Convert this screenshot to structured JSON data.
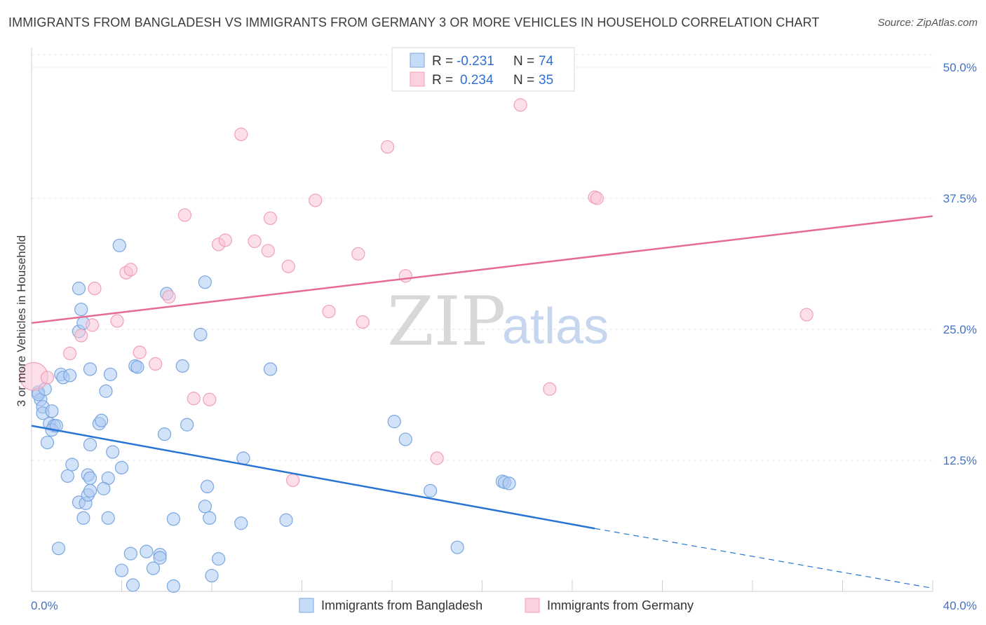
{
  "title": "IMMIGRANTS FROM BANGLADESH VS IMMIGRANTS FROM GERMANY 3 OR MORE VEHICLES IN HOUSEHOLD CORRELATION CHART",
  "source": "Source: ZipAtlas.com",
  "watermark": {
    "zip": "ZIP",
    "atlas": "atlas"
  },
  "colors": {
    "blue": "#5b9bd5",
    "blue_line": "#2874d3",
    "pink": "#f4a7bf",
    "pink_line": "#e56b94",
    "tick": "#4472c4"
  },
  "legend": {
    "rows": [
      {
        "r_label": "R =",
        "r_value": "-0.231",
        "n_label": "N =",
        "n_value": "74"
      },
      {
        "r_label": "R =",
        "r_value": "0.234",
        "n_label": "N =",
        "n_value": "35"
      }
    ]
  },
  "chart_data": {
    "type": "scatter",
    "title": "IMMIGRANTS FROM BANGLADESH VS IMMIGRANTS FROM GERMANY 3 OR MORE VEHICLES IN HOUSEHOLD CORRELATION CHART",
    "xlabel": "",
    "ylabel": "3 or more Vehicles in Household",
    "xlim": [
      0,
      40
    ],
    "ylim": [
      0,
      50
    ],
    "x_tick_labels": [
      "0.0%",
      "40.0%"
    ],
    "y_ticks": [
      12.5,
      25.0,
      37.5,
      50.0
    ],
    "y_tick_labels": [
      "12.5%",
      "25.0%",
      "37.5%",
      "50.0%"
    ],
    "grid": true,
    "legend_position": "top-center",
    "series": [
      {
        "name": "Immigrants from Bangladesh",
        "color": "#5b9bd5",
        "trend": {
          "x": [
            0,
            25
          ],
          "y": [
            15.8,
            6.0
          ],
          "dashed_to": [
            40,
            0.3
          ]
        },
        "points": [
          [
            0.3,
            19.0
          ],
          [
            0.4,
            18.3
          ],
          [
            0.3,
            18.8
          ],
          [
            0.6,
            19.3
          ],
          [
            0.5,
            17.6
          ],
          [
            0.5,
            17.0
          ],
          [
            0.9,
            17.2
          ],
          [
            0.8,
            16.0
          ],
          [
            1.0,
            15.8
          ],
          [
            0.9,
            15.4
          ],
          [
            1.1,
            15.8
          ],
          [
            0.7,
            14.2
          ],
          [
            1.3,
            20.7
          ],
          [
            1.4,
            20.4
          ],
          [
            1.7,
            20.6
          ],
          [
            2.1,
            24.8
          ],
          [
            2.1,
            8.5
          ],
          [
            2.2,
            26.9
          ],
          [
            2.3,
            25.6
          ],
          [
            2.1,
            28.9
          ],
          [
            2.6,
            21.2
          ],
          [
            2.6,
            14.0
          ],
          [
            2.5,
            11.1
          ],
          [
            2.6,
            10.8
          ],
          [
            1.8,
            12.1
          ],
          [
            1.6,
            11.0
          ],
          [
            2.3,
            7.0
          ],
          [
            2.4,
            8.4
          ],
          [
            2.5,
            9.2
          ],
          [
            2.6,
            9.6
          ],
          [
            3.0,
            16.0
          ],
          [
            3.1,
            16.3
          ],
          [
            3.3,
            19.1
          ],
          [
            3.5,
            20.7
          ],
          [
            3.6,
            13.3
          ],
          [
            3.4,
            10.8
          ],
          [
            3.2,
            9.8
          ],
          [
            3.4,
            7.0
          ],
          [
            3.9,
            33.0
          ],
          [
            4.0,
            11.8
          ],
          [
            1.2,
            4.1
          ],
          [
            4.4,
            3.6
          ],
          [
            4.5,
            0.6
          ],
          [
            4.0,
            2.0
          ],
          [
            4.6,
            21.5
          ],
          [
            4.7,
            21.4
          ],
          [
            5.1,
            3.8
          ],
          [
            5.4,
            2.2
          ],
          [
            5.7,
            3.5
          ],
          [
            5.7,
            3.2
          ],
          [
            5.9,
            15.0
          ],
          [
            6.0,
            28.4
          ],
          [
            6.3,
            6.9
          ],
          [
            6.3,
            0.5
          ],
          [
            6.7,
            21.5
          ],
          [
            6.9,
            15.9
          ],
          [
            7.5,
            24.5
          ],
          [
            7.7,
            29.5
          ],
          [
            7.8,
            10.0
          ],
          [
            7.7,
            8.1
          ],
          [
            7.9,
            7.0
          ],
          [
            8.0,
            1.5
          ],
          [
            8.3,
            3.1
          ],
          [
            9.3,
            6.5
          ],
          [
            9.4,
            12.7
          ],
          [
            10.6,
            21.2
          ],
          [
            11.3,
            6.8
          ],
          [
            16.1,
            16.2
          ],
          [
            16.6,
            14.5
          ],
          [
            17.7,
            9.6
          ],
          [
            18.9,
            4.2
          ],
          [
            20.9,
            10.5
          ],
          [
            21.0,
            10.4
          ],
          [
            21.2,
            10.3
          ]
        ]
      },
      {
        "name": "Immigrants from Germany",
        "color": "#f4a7bf",
        "trend": {
          "x": [
            0,
            40
          ],
          "y": [
            25.6,
            35.8
          ]
        },
        "points": [
          [
            0.1,
            20.5
          ],
          [
            0.7,
            20.4
          ],
          [
            1.7,
            22.7
          ],
          [
            2.2,
            24.4
          ],
          [
            2.7,
            25.4
          ],
          [
            2.8,
            28.9
          ],
          [
            3.8,
            25.8
          ],
          [
            4.2,
            30.4
          ],
          [
            4.4,
            30.7
          ],
          [
            4.8,
            22.8
          ],
          [
            5.5,
            21.7
          ],
          [
            6.1,
            28.1
          ],
          [
            6.8,
            35.9
          ],
          [
            7.2,
            18.4
          ],
          [
            7.9,
            18.3
          ],
          [
            8.3,
            33.1
          ],
          [
            8.6,
            33.5
          ],
          [
            9.3,
            43.6
          ],
          [
            9.9,
            33.4
          ],
          [
            10.5,
            32.5
          ],
          [
            10.6,
            35.6
          ],
          [
            11.4,
            31.0
          ],
          [
            11.6,
            10.6
          ],
          [
            12.6,
            37.3
          ],
          [
            13.2,
            26.7
          ],
          [
            14.5,
            32.2
          ],
          [
            14.7,
            25.7
          ],
          [
            15.8,
            42.4
          ],
          [
            16.6,
            30.1
          ],
          [
            18.0,
            12.7
          ],
          [
            21.7,
            46.4
          ],
          [
            23.0,
            19.3
          ],
          [
            25.0,
            37.6
          ],
          [
            34.4,
            26.4
          ],
          [
            25.1,
            37.5
          ]
        ]
      }
    ]
  }
}
